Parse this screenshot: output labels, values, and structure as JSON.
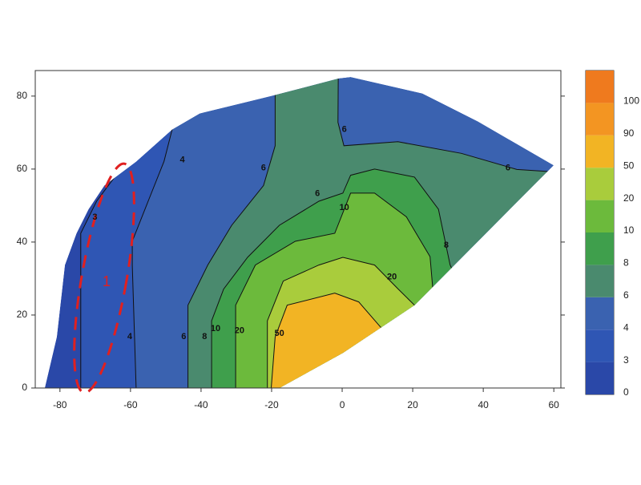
{
  "chart_data": {
    "type": "contour",
    "xlim": [
      -87,
      62
    ],
    "ylim": [
      0,
      87
    ],
    "xticks": [
      -80,
      -60,
      -40,
      -20,
      0,
      20,
      40,
      60
    ],
    "yticks": [
      0,
      20,
      40,
      60,
      80
    ],
    "levels": [
      0,
      3,
      4,
      6,
      8,
      10,
      20,
      50,
      90,
      100
    ],
    "colors": [
      "#2a48a8",
      "#2f56b4",
      "#3a62b0",
      "#4a8a6e",
      "#3f9f4c",
      "#6cba3c",
      "#a9cc3c",
      "#f2b424",
      "#f39522",
      "#ef7a1e"
    ],
    "domain": [
      [
        -84.3,
        0
      ],
      [
        -80.9,
        14
      ],
      [
        -78.6,
        33.7
      ],
      [
        -75.3,
        42.4
      ],
      [
        -71.9,
        49
      ],
      [
        -67.4,
        55.5
      ],
      [
        -58.4,
        62
      ],
      [
        -48.2,
        70.8
      ],
      [
        -40.4,
        75.2
      ],
      [
        -20.1,
        80
      ],
      [
        -1,
        84.8
      ],
      [
        2.4,
        85.2
      ],
      [
        22.7,
        80.7
      ],
      [
        38.5,
        73
      ],
      [
        59.9,
        61
      ],
      [
        47.5,
        49
      ],
      [
        34,
        35.8
      ],
      [
        20.5,
        22.7
      ],
      [
        0.2,
        9.6
      ],
      [
        -17.8,
        0
      ]
    ],
    "contour_polygons": [
      [
        [
          -74.1,
          0
        ],
        [
          -74.1,
          42.4
        ],
        [
          -69.6,
          51.2
        ],
        [
          -62.9,
          59.9
        ],
        [
          -53.8,
          66.4
        ],
        [
          -53.8,
          100
        ],
        [
          70,
          100
        ],
        [
          70,
          0
        ]
      ],
      [
        [
          -58.4,
          0
        ],
        [
          -59.5,
          33.7
        ],
        [
          -59.5,
          40.2
        ],
        [
          -55,
          51.2
        ],
        [
          -50.5,
          62.1
        ],
        [
          -48.2,
          70.8
        ],
        [
          -48.2,
          100
        ],
        [
          70,
          100
        ],
        [
          70,
          0
        ]
      ],
      [
        [
          -43.7,
          0
        ],
        [
          -43.7,
          22.7
        ],
        [
          -38.1,
          33.7
        ],
        [
          -31.3,
          44.6
        ],
        [
          -22.3,
          55.5
        ],
        [
          -19,
          66.4
        ],
        [
          -19,
          100
        ],
        [
          -1,
          100
        ],
        [
          -1.2,
          72.8
        ],
        [
          0.5,
          66.4
        ],
        [
          15.8,
          67.5
        ],
        [
          33.8,
          64.3
        ],
        [
          49.5,
          59.9
        ],
        [
          80,
          58
        ],
        [
          80,
          0
        ]
      ],
      [
        [
          -37,
          0
        ],
        [
          -37,
          18.4
        ],
        [
          -33.6,
          27.1
        ],
        [
          -26.8,
          35.8
        ],
        [
          -17.8,
          44.6
        ],
        [
          -6.6,
          51.2
        ],
        [
          0.2,
          53.4
        ],
        [
          2.4,
          58.3
        ],
        [
          9.2,
          60
        ],
        [
          20.5,
          57.8
        ],
        [
          27.3,
          49
        ],
        [
          30.6,
          33.7
        ],
        [
          31.7,
          31.5
        ],
        [
          45,
          31.5
        ],
        [
          45,
          0
        ]
      ],
      [
        [
          -30.2,
          0
        ],
        [
          -30.2,
          22.7
        ],
        [
          -24.6,
          33.7
        ],
        [
          -13.3,
          40.2
        ],
        [
          -2.1,
          42.4
        ],
        [
          2.4,
          53.4
        ],
        [
          9.2,
          53.4
        ],
        [
          18.2,
          46.9
        ],
        [
          24.9,
          36
        ],
        [
          26.1,
          22.7
        ],
        [
          40,
          22.7
        ],
        [
          40,
          0
        ]
      ],
      [
        [
          -21.2,
          0
        ],
        [
          -21.2,
          18.4
        ],
        [
          -16.7,
          29.3
        ],
        [
          -6.6,
          33.7
        ],
        [
          0.2,
          35.8
        ],
        [
          9.2,
          33.7
        ],
        [
          15.9,
          27.1
        ],
        [
          20.5,
          22.7
        ],
        [
          30,
          10
        ],
        [
          30,
          0
        ]
      ],
      [
        [
          -20.1,
          0
        ],
        [
          -19,
          14
        ],
        [
          -15.6,
          22.7
        ],
        [
          -2.1,
          26
        ],
        [
          4.7,
          23.6
        ],
        [
          11.5,
          16
        ],
        [
          13.8,
          14
        ],
        [
          20,
          5
        ],
        [
          20,
          0
        ]
      ]
    ],
    "contour_labels": [
      {
        "x": -70.1,
        "y": 46.8,
        "value": 3
      },
      {
        "x": -45.3,
        "y": 62.5,
        "value": 4
      },
      {
        "x": -22.3,
        "y": 60.3,
        "value": 6
      },
      {
        "x": -7,
        "y": 53.3,
        "value": 6
      },
      {
        "x": 0.6,
        "y": 70.8,
        "value": 6
      },
      {
        "x": 47,
        "y": 60.3,
        "value": 6
      },
      {
        "x": -60.2,
        "y": 14,
        "value": 4
      },
      {
        "x": -44.9,
        "y": 14,
        "value": 6
      },
      {
        "x": -39,
        "y": 14,
        "value": 8
      },
      {
        "x": -35.9,
        "y": 16.2,
        "value": 10
      },
      {
        "x": -29.1,
        "y": 15.7,
        "value": 20
      },
      {
        "x": -17.8,
        "y": 14.9,
        "value": 50
      },
      {
        "x": 0.6,
        "y": 49.4,
        "value": 10
      },
      {
        "x": 29.5,
        "y": 39.1,
        "value": 8
      },
      {
        "x": 14.1,
        "y": 30.4,
        "value": 20
      }
    ],
    "annotation": "1"
  }
}
